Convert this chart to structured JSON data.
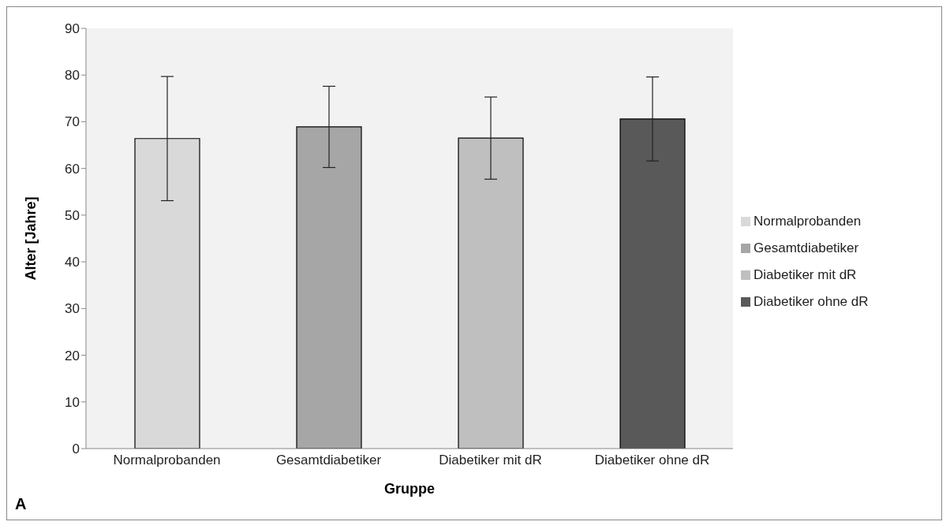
{
  "chart_data": {
    "type": "bar",
    "xlabel": "Gruppe",
    "ylabel": "Alter [Jahre]",
    "categories": [
      "Normalprobanden",
      "Gesamtdiabetiker",
      "Diabetiker mit dR",
      "Diabetiker ohne dR"
    ],
    "series": [
      {
        "name": "Normalprobanden",
        "color": "#d9d9d9",
        "values": [
          66.4,
          null,
          null,
          null
        ],
        "errors": [
          13.3,
          null,
          null,
          null
        ]
      },
      {
        "name": "Gesamtdiabetiker",
        "color": "#a6a6a6",
        "values": [
          null,
          68.9,
          null,
          null
        ],
        "errors": [
          null,
          8.7,
          null,
          null
        ]
      },
      {
        "name": "Diabetiker mit dR",
        "color": "#bfbfbf",
        "values": [
          null,
          null,
          66.5,
          null
        ],
        "errors": [
          null,
          null,
          8.8,
          null
        ]
      },
      {
        "name": "Diabetiker ohne dR",
        "color": "#595959",
        "values": [
          null,
          null,
          null,
          70.6
        ],
        "errors": [
          null,
          null,
          null,
          9.0
        ]
      }
    ],
    "ylim": [
      0,
      90
    ],
    "yticks": [
      0,
      10,
      20,
      30,
      40,
      50,
      60,
      70,
      80,
      90
    ],
    "legend": "right",
    "grid": false,
    "annotations": [
      "A"
    ]
  }
}
